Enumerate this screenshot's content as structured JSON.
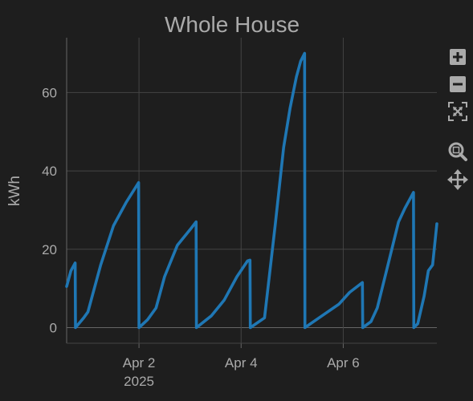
{
  "chart_data": {
    "type": "line",
    "title": "Whole House",
    "xlabel": "",
    "ylabel": "kWh",
    "x_ticks": [
      {
        "date": "2025-04-02",
        "label": "Apr 2",
        "sublabel": "2025"
      },
      {
        "date": "2025-04-04",
        "label": "Apr 4",
        "sublabel": ""
      },
      {
        "date": "2025-04-06",
        "label": "Apr 6",
        "sublabel": ""
      }
    ],
    "y_ticks": [
      0,
      20,
      40,
      60
    ],
    "xlim": [
      "2025-03-31T14:00",
      "2025-04-07T20:00"
    ],
    "ylim": [
      -4,
      74
    ],
    "grid": true,
    "colors": {
      "line": "#1f77b4",
      "background": "#1e1e1e",
      "grid": "#444444",
      "text": "#aaaaaa"
    },
    "series": [
      {
        "points": [
          [
            "2025-03-31T14:00",
            10.5
          ],
          [
            "2025-03-31T16:00",
            14.5
          ],
          [
            "2025-03-31T18:00",
            16.5
          ],
          [
            "2025-03-31T18:10",
            0
          ],
          [
            "2025-03-31T22:00",
            2.5
          ],
          [
            "2025-04-01T00:00",
            4
          ],
          [
            "2025-04-01T06:00",
            16
          ],
          [
            "2025-04-01T12:00",
            26
          ],
          [
            "2025-04-01T18:00",
            32
          ],
          [
            "2025-04-01T23:50",
            37
          ],
          [
            "2025-04-02T00:00",
            0
          ],
          [
            "2025-04-02T04:00",
            2
          ],
          [
            "2025-04-02T08:00",
            5
          ],
          [
            "2025-04-02T12:00",
            13
          ],
          [
            "2025-04-02T18:00",
            21
          ],
          [
            "2025-04-03T00:00",
            25
          ],
          [
            "2025-04-03T02:50",
            27
          ],
          [
            "2025-04-03T03:00",
            0
          ],
          [
            "2025-04-03T10:00",
            3
          ],
          [
            "2025-04-03T16:00",
            7
          ],
          [
            "2025-04-03T22:00",
            13
          ],
          [
            "2025-04-04T03:00",
            17
          ],
          [
            "2025-04-04T04:10",
            17.2
          ],
          [
            "2025-04-04T04:20",
            0
          ],
          [
            "2025-04-04T11:00",
            2.5
          ],
          [
            "2025-04-04T16:00",
            26
          ],
          [
            "2025-04-04T20:00",
            46
          ],
          [
            "2025-04-04T23:00",
            56
          ],
          [
            "2025-04-05T02:00",
            64
          ],
          [
            "2025-04-05T04:00",
            68
          ],
          [
            "2025-04-05T05:50",
            70
          ],
          [
            "2025-04-05T06:00",
            0
          ],
          [
            "2025-04-05T14:00",
            3
          ],
          [
            "2025-04-05T22:00",
            6
          ],
          [
            "2025-04-06T03:00",
            9
          ],
          [
            "2025-04-06T09:00",
            11.5
          ],
          [
            "2025-04-06T09:10",
            0
          ],
          [
            "2025-04-06T13:00",
            1.5
          ],
          [
            "2025-04-06T16:00",
            5
          ],
          [
            "2025-04-06T21:00",
            16
          ],
          [
            "2025-04-07T02:00",
            27
          ],
          [
            "2025-04-07T05:00",
            30.5
          ],
          [
            "2025-04-07T09:00",
            34.5
          ],
          [
            "2025-04-07T09:10",
            0
          ],
          [
            "2025-04-07T11:00",
            1
          ],
          [
            "2025-04-07T14:00",
            8
          ],
          [
            "2025-04-07T16:00",
            14.5
          ],
          [
            "2025-04-07T18:00",
            16
          ],
          [
            "2025-04-07T20:00",
            26.5
          ]
        ]
      }
    ]
  },
  "modebar": {
    "buttons": [
      {
        "icon": "zoom-in-icon"
      },
      {
        "icon": "zoom-out-icon"
      },
      {
        "icon": "autoscale-icon"
      },
      {
        "icon": "zoom-box-icon"
      },
      {
        "icon": "pan-icon"
      }
    ]
  }
}
